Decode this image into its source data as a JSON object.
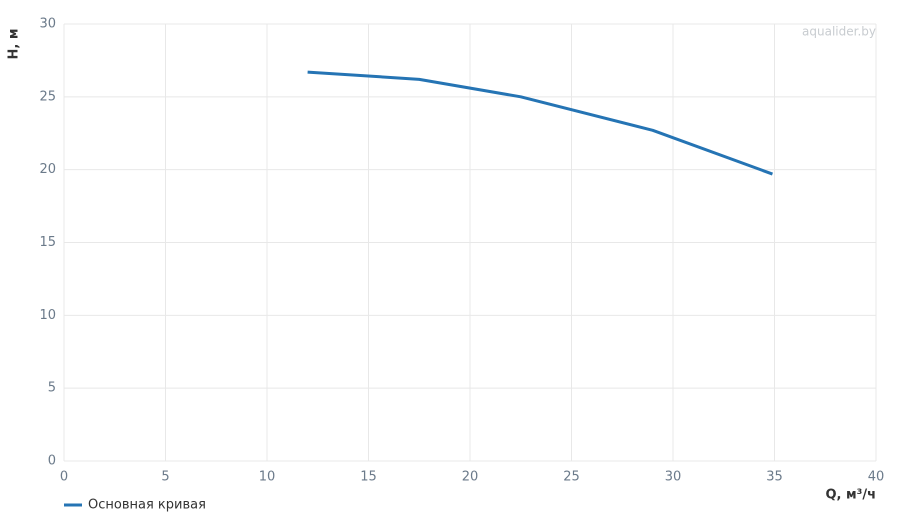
{
  "chart_data": {
    "type": "line",
    "x_label": "Q, м³/ч",
    "y_label": "H, м",
    "watermark": "aqualider.by",
    "xlim": [
      0,
      40
    ],
    "xticks": [
      0,
      5,
      10,
      15,
      20,
      25,
      30,
      35,
      40
    ],
    "ylim": [
      0,
      30
    ],
    "yticks": [
      0,
      5,
      10,
      15,
      20,
      25,
      30
    ],
    "grid": true,
    "legend": "bottom-left",
    "series": [
      {
        "name": "Основная кривая",
        "color": "#2574b4",
        "x": [
          12,
          17.5,
          22.5,
          29,
          34.9
        ],
        "values": [
          26.7,
          26.2,
          25.0,
          22.7,
          19.7
        ]
      }
    ]
  }
}
